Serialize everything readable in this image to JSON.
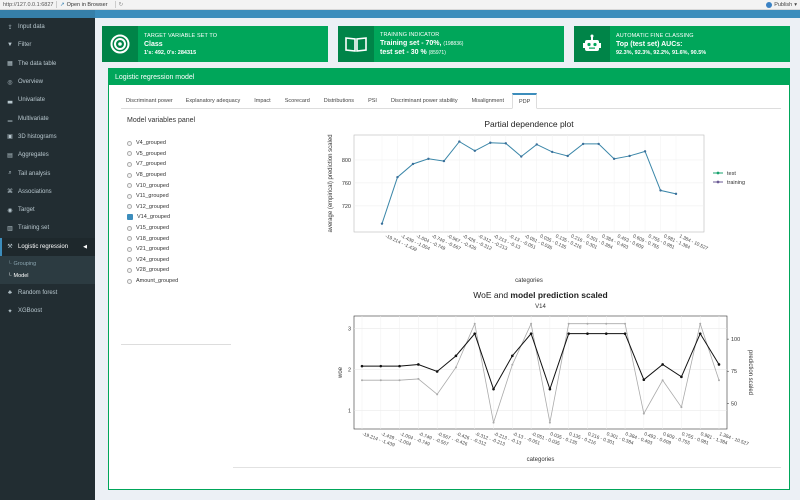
{
  "browser": {
    "url": "http://127.0.0.1:6827",
    "open_in_browser": "Open in Browser",
    "publish": "Publish"
  },
  "sidebar": {
    "items": [
      {
        "label": "Input data",
        "icon": "upload-icon"
      },
      {
        "label": "Filter",
        "icon": "filter-icon"
      },
      {
        "label": "The data table",
        "icon": "table-icon"
      },
      {
        "label": "Overview",
        "icon": "binoculars-icon"
      },
      {
        "label": "Univariate",
        "icon": "bar-chart-icon"
      },
      {
        "label": "Multivariate",
        "icon": "chart-icon"
      },
      {
        "label": "3D histograms",
        "icon": "cube-icon"
      },
      {
        "label": "Aggregates",
        "icon": "layers-icon"
      },
      {
        "label": "Tail analysis",
        "icon": "search-icon"
      },
      {
        "label": "Associations",
        "icon": "network-icon"
      },
      {
        "label": "Target",
        "icon": "target-icon"
      },
      {
        "label": "Training set",
        "icon": "train-icon"
      },
      {
        "label": "Logistic regression",
        "icon": "tools-icon"
      }
    ],
    "submenu": [
      {
        "label": "Grouping"
      },
      {
        "label": "Model"
      }
    ],
    "after": [
      {
        "label": "Random forest",
        "icon": "forest-icon"
      },
      {
        "label": "XGBoost",
        "icon": "boost-icon"
      }
    ]
  },
  "info_boxes": {
    "target": {
      "label": "TARGET VARIABLE SET TO",
      "value": "Class",
      "sub": "1's: 492, 0's: 284315"
    },
    "training": {
      "label": "TRAINING INDICATOR",
      "line1": "Training set - 70%,",
      "line1_small": "(198836)",
      "line2": "test set - 30 %",
      "line2_small": "(85971)"
    },
    "fine": {
      "label": "AUTOMATIC FINE CLASSING",
      "line1": "Top (test set) AUCs:",
      "line2": "92.3%, 92.3%, 92.2%, 91.6%, 90.5%"
    }
  },
  "panel": {
    "title": "Logistic regression model",
    "tabs": [
      "Discriminant power",
      "Explanatory adequacy",
      "Impact",
      "Scorecard",
      "Distributions",
      "PSI",
      "Discriminant power stability",
      "Misalignment",
      "PDP"
    ],
    "active_tab": "PDP"
  },
  "variables_panel": {
    "title": "Model variables panel",
    "items": [
      "V4_grouped",
      "V5_grouped",
      "V7_grouped",
      "V8_grouped",
      "V10_grouped",
      "V11_grouped",
      "V12_grouped",
      "V14_grouped",
      "V15_grouped",
      "V18_grouped",
      "V21_grouped",
      "V24_grouped",
      "V28_grouped",
      "Amount_grouped"
    ],
    "selected": "V14_grouped"
  },
  "chart_data": [
    {
      "type": "line",
      "title": "Partial dependence plot",
      "xlabel": "categories",
      "ylabel": "average (empirical) prediction scaled",
      "ylim": [
        678,
        625
      ],
      "yticks": [
        720,
        760,
        800
      ],
      "categories": [
        "-19.214 - -1.439",
        "-1.439 - -1.004",
        "-1.004 - -0.749",
        "-0.749 - -0.567",
        "-0.567 - -0.426",
        "-0.426 - -0.312",
        "-0.312 - -0.213",
        "-0.213 - -0.13",
        "-0.13 - -0.051",
        "-0.051 - 0.035",
        "0.035 - 0.135",
        "0.135 - 0.216",
        "0.216 - 0.301",
        "0.301 - 0.384",
        "0.384 - 0.493",
        "0.493 - 0.609",
        "0.609 - 0.755",
        "0.755 - 0.981",
        "0.981 - 1.384",
        "1.384 - 10.527"
      ],
      "legend": {
        "placement": "right"
      },
      "series": [
        {
          "name": "test",
          "color": "#1aa36f",
          "values": [
            689,
            770,
            793,
            802,
            798,
            832,
            816,
            830,
            829,
            806,
            827,
            814,
            807,
            828,
            828,
            802,
            807,
            815,
            747,
            741
          ]
        },
        {
          "name": "training",
          "color": "#6b5b95",
          "values": [
            689,
            770,
            793,
            802,
            798,
            832,
            816,
            830,
            829,
            806,
            827,
            814,
            807,
            828,
            828,
            802,
            807,
            815,
            747,
            741
          ]
        }
      ]
    },
    {
      "type": "line",
      "title_normal": "WoE and ",
      "title_bold": "model prediction scaled",
      "subtitle": "V14",
      "xlabel": "categories",
      "ylabel": "woe",
      "y2label": "prediction scaled",
      "ylim": [
        0.55,
        3.3
      ],
      "yticks": [
        1,
        2,
        3
      ],
      "y2lim": [
        30,
        118
      ],
      "y2ticks": [
        50,
        75,
        100
      ],
      "categories": [
        "-19.214 - -1.439",
        "-1.439 - -1.004",
        "-1.004 - -0.749",
        "-0.749 - -0.567",
        "-0.567 - -0.426",
        "-0.426 - -0.312",
        "-0.312 - -0.213",
        "-0.213 - -0.13",
        "-0.13 - -0.051",
        "-0.051 - 0.035",
        "0.035 - 0.135",
        "0.135 - 0.216",
        "0.216 - 0.301",
        "0.301 - 0.384",
        "0.384 - 0.493",
        "0.493 - 0.609",
        "0.609 - 0.755",
        "0.755 - 0.981",
        "0.981 - 1.384",
        "1.384 - 10.527"
      ],
      "series": [
        {
          "name": "woe",
          "color": "#111111",
          "values": [
            2.08,
            2.08,
            2.08,
            2.12,
            1.95,
            2.33,
            2.87,
            1.52,
            2.33,
            2.87,
            1.52,
            2.87,
            2.87,
            2.87,
            2.87,
            1.75,
            2.12,
            1.82,
            2.87,
            2.12
          ]
        },
        {
          "name": "prediction scaled",
          "color": "#aaaaaa",
          "values": [
            68,
            68,
            68,
            69,
            57,
            78,
            112,
            35,
            80,
            112,
            35,
            112,
            112,
            112,
            112,
            42,
            68,
            47,
            112,
            68
          ]
        }
      ]
    }
  ]
}
